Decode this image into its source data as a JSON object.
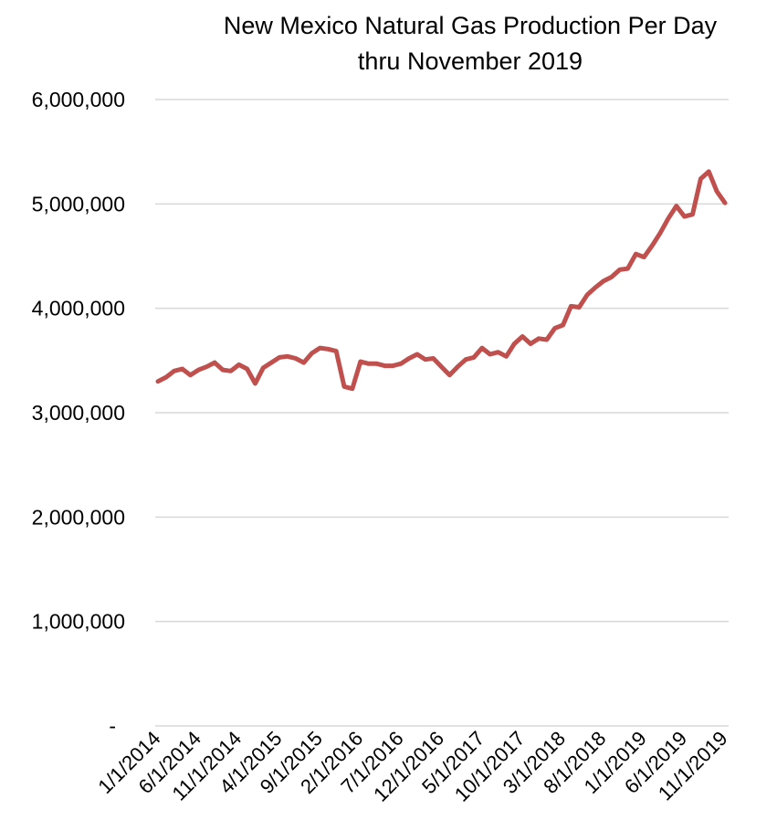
{
  "chart_data": {
    "type": "line",
    "title_lines": [
      "New Mexico Natural Gas Production Per Day",
      "thru November 2019"
    ],
    "xlabel": "",
    "ylabel": "",
    "ylim": [
      0,
      6000000
    ],
    "y_ticks": [
      {
        "value": 0,
        "label": "-"
      },
      {
        "value": 1000000,
        "label": "1,000,000"
      },
      {
        "value": 2000000,
        "label": "2,000,000"
      },
      {
        "value": 3000000,
        "label": "3,000,000"
      },
      {
        "value": 4000000,
        "label": "4,000,000"
      },
      {
        "value": 5000000,
        "label": "5,000,000"
      },
      {
        "value": 6000000,
        "label": "6,000,000"
      }
    ],
    "x_tick_labels": [
      "1/1/2014",
      "6/1/2014",
      "11/1/2014",
      "4/1/2015",
      "9/1/2015",
      "2/1/2016",
      "7/1/2016",
      "12/1/2016",
      "5/1/2017",
      "10/1/2017",
      "3/1/2018",
      "8/1/2018",
      "1/1/2019",
      "6/1/2019",
      "11/1/2019"
    ],
    "x_tick_every_n_points": 5,
    "grid": true,
    "legend": "none",
    "line_color": "#c0504d",
    "x": [
      "1/1/2014",
      "2/1/2014",
      "3/1/2014",
      "4/1/2014",
      "5/1/2014",
      "6/1/2014",
      "7/1/2014",
      "8/1/2014",
      "9/1/2014",
      "10/1/2014",
      "11/1/2014",
      "12/1/2014",
      "1/1/2015",
      "2/1/2015",
      "3/1/2015",
      "4/1/2015",
      "5/1/2015",
      "6/1/2015",
      "7/1/2015",
      "8/1/2015",
      "9/1/2015",
      "10/1/2015",
      "11/1/2015",
      "12/1/2015",
      "1/1/2016",
      "2/1/2016",
      "3/1/2016",
      "4/1/2016",
      "5/1/2016",
      "6/1/2016",
      "7/1/2016",
      "8/1/2016",
      "9/1/2016",
      "10/1/2016",
      "11/1/2016",
      "12/1/2016",
      "1/1/2017",
      "2/1/2017",
      "3/1/2017",
      "4/1/2017",
      "5/1/2017",
      "6/1/2017",
      "7/1/2017",
      "8/1/2017",
      "9/1/2017",
      "10/1/2017",
      "11/1/2017",
      "12/1/2017",
      "1/1/2018",
      "2/1/2018",
      "3/1/2018",
      "4/1/2018",
      "5/1/2018",
      "6/1/2018",
      "7/1/2018",
      "8/1/2018",
      "9/1/2018",
      "10/1/2018",
      "11/1/2018",
      "12/1/2018",
      "1/1/2019",
      "2/1/2019",
      "3/1/2019",
      "4/1/2019",
      "5/1/2019",
      "6/1/2019",
      "7/1/2019",
      "8/1/2019",
      "9/1/2019",
      "10/1/2019",
      "11/1/2019"
    ],
    "series": [
      {
        "values": [
          3300000,
          3340000,
          3400000,
          3420000,
          3360000,
          3410000,
          3440000,
          3480000,
          3410000,
          3400000,
          3460000,
          3420000,
          3280000,
          3430000,
          3480000,
          3530000,
          3540000,
          3520000,
          3480000,
          3570000,
          3620000,
          3610000,
          3590000,
          3250000,
          3230000,
          3490000,
          3470000,
          3470000,
          3450000,
          3450000,
          3470000,
          3520000,
          3560000,
          3510000,
          3520000,
          3440000,
          3360000,
          3440000,
          3510000,
          3530000,
          3620000,
          3560000,
          3580000,
          3540000,
          3660000,
          3730000,
          3660000,
          3710000,
          3700000,
          3810000,
          3840000,
          4020000,
          4010000,
          4130000,
          4200000,
          4260000,
          4300000,
          4370000,
          4380000,
          4520000,
          4490000,
          4600000,
          4720000,
          4860000,
          4980000,
          4880000,
          4900000,
          5240000,
          5310000,
          5120000,
          5010000
        ]
      }
    ]
  }
}
